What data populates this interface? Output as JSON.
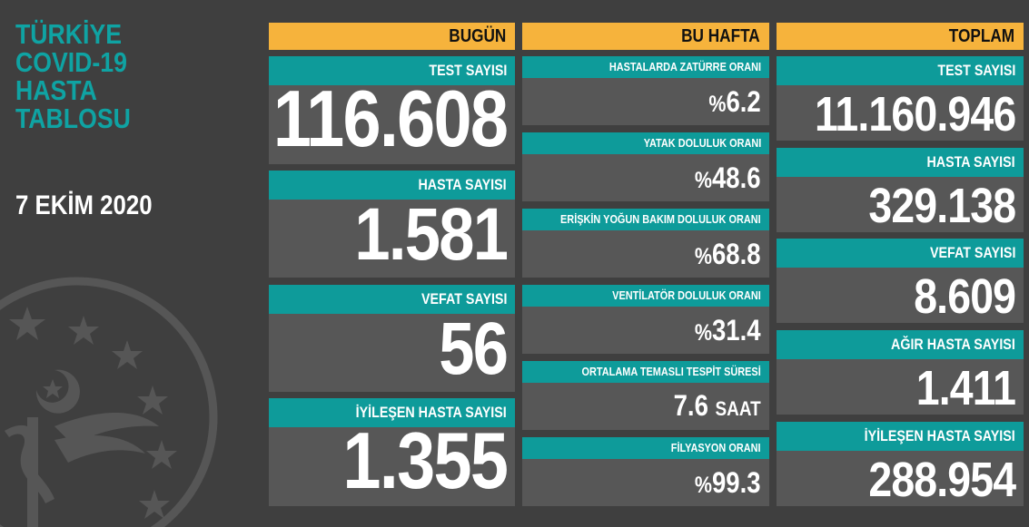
{
  "title_lines": [
    "TÜRKİYE",
    "COVID-19",
    "HASTA",
    "TABLOSU"
  ],
  "date": "7 EKİM 2020",
  "emblem": {
    "icon": "ministry-emblem-icon",
    "color": "#5a5a5a"
  },
  "colors": {
    "background": "#3f3f3f",
    "header": "#f6b33c",
    "label": "#0e9b9a",
    "card": "#575757",
    "title": "#0fa3a3"
  },
  "today": {
    "header": "BUGÜN",
    "items": [
      {
        "label": "TEST SAYISI",
        "value": "116.608"
      },
      {
        "label": "HASTA SAYISI",
        "value": "1.581"
      },
      {
        "label": "VEFAT SAYISI",
        "value": "56"
      },
      {
        "label": "İYİLEŞEN HASTA SAYISI",
        "value": "1.355"
      }
    ]
  },
  "week": {
    "header": "BU HAFTA",
    "items": [
      {
        "label": "HASTALARDA ZATÜRRE ORANI",
        "prefix": "%",
        "value": "6.2",
        "unit": ""
      },
      {
        "label": "YATAK DOLULUK ORANI",
        "prefix": "%",
        "value": "48.6",
        "unit": ""
      },
      {
        "label": "ERİŞKİN YOĞUN BAKIM DOLULUK ORANI",
        "prefix": "%",
        "value": "68.8",
        "unit": ""
      },
      {
        "label": "VENTİLATÖR DOLULUK ORANI",
        "prefix": "%",
        "value": "31.4",
        "unit": ""
      },
      {
        "label": "ORTALAMA TEMASLI TESPİT SÜRESİ",
        "prefix": "",
        "value": "7.6",
        "unit": "SAAT"
      },
      {
        "label": "FİLYASYON ORANI",
        "prefix": "%",
        "value": "99.3",
        "unit": ""
      }
    ]
  },
  "total": {
    "header": "TOPLAM",
    "items": [
      {
        "label": "TEST SAYISI",
        "value": "11.160.946"
      },
      {
        "label": "HASTA SAYISI",
        "value": "329.138"
      },
      {
        "label": "VEFAT SAYISI",
        "value": "8.609"
      },
      {
        "label": "AĞIR HASTA SAYISI",
        "value": "1.411"
      },
      {
        "label": "İYİLEŞEN HASTA SAYISI",
        "value": "288.954"
      }
    ]
  }
}
